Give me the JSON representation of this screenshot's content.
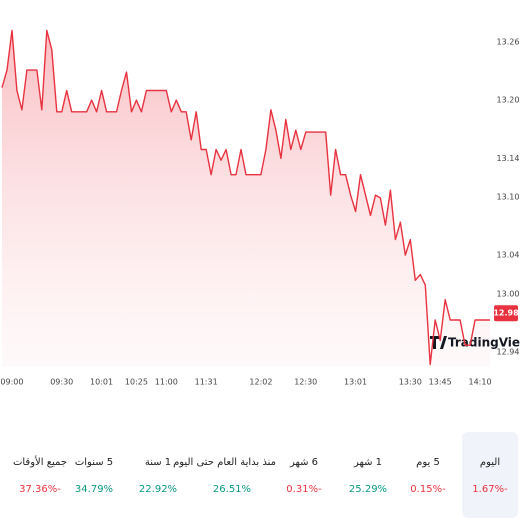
{
  "chart_data": {
    "type": "line",
    "color": "#e8323f",
    "grid": false,
    "values": [
      13.213,
      13.231,
      13.272,
      13.21,
      13.19,
      13.231,
      13.231,
      13.231,
      13.19,
      13.272,
      13.252,
      13.188,
      13.188,
      13.21,
      13.188,
      13.188,
      13.188,
      13.188,
      13.2,
      13.188,
      13.21,
      13.188,
      13.188,
      13.188,
      13.21,
      13.229,
      13.188,
      13.2,
      13.188,
      13.21,
      13.21,
      13.21,
      13.21,
      13.21,
      13.188,
      13.2,
      13.188,
      13.188,
      13.159,
      13.188,
      13.149,
      13.149,
      13.123,
      13.149,
      13.138,
      13.149,
      13.123,
      13.123,
      13.149,
      13.123,
      13.123,
      13.123,
      13.123,
      13.149,
      13.19,
      13.169,
      13.14,
      13.18,
      13.149,
      13.169,
      13.149,
      13.167,
      13.167,
      13.167,
      13.167,
      13.167,
      13.102,
      13.149,
      13.123,
      13.123,
      13.102,
      13.085,
      13.123,
      13.102,
      13.081,
      13.102,
      13.099,
      13.071,
      13.107,
      13.056,
      13.074,
      13.04,
      13.056,
      13.014,
      13.02,
      13.009,
      12.927,
      12.973,
      12.952,
      12.994,
      12.973,
      12.973,
      12.973,
      12.947,
      12.947,
      12.973,
      12.973,
      12.973,
      12.973
    ],
    "xlim": [
      0,
      98
    ],
    "xticks": [
      {
        "value": 2,
        "label": "09:00"
      },
      {
        "value": 12,
        "label": "09:30"
      },
      {
        "value": 20,
        "label": "10:01"
      },
      {
        "value": 27,
        "label": "10:25"
      },
      {
        "value": 33,
        "label": "11:00"
      },
      {
        "value": 41,
        "label": "11:31"
      },
      {
        "value": 52,
        "label": "12:02"
      },
      {
        "value": 61,
        "label": "12:30"
      },
      {
        "value": 71,
        "label": "13:01"
      },
      {
        "value": 82,
        "label": "13:30"
      },
      {
        "value": 88,
        "label": "13:45"
      },
      {
        "value": 96,
        "label": "14:10"
      }
    ],
    "ylim": [
      12.925,
      13.275
    ],
    "yticks": [
      13.26,
      {
        "value": 13.2,
        "label": "13.20"
      },
      13.14,
      {
        "value": 13.1,
        "label": "13.10"
      },
      13.04,
      {
        "value": 13.0,
        "label": "13.00"
      },
      12.94
    ],
    "last_price": 12.98,
    "watermark": "TradingView"
  },
  "periods": [
    {
      "label": "اليوم",
      "change": "1.67%-",
      "color": "#e8323f",
      "selected": true
    },
    {
      "label": "5 يوم",
      "change": "0.15%-",
      "color": "#e8323f",
      "selected": false
    },
    {
      "label": "1 شهر",
      "change": "25.29%",
      "color": "#089981",
      "selected": false
    },
    {
      "label": "6 شهر",
      "change": "0.31%-",
      "color": "#e8323f",
      "selected": false
    },
    {
      "label": "منذ بداية العام حتى اليوم",
      "change": "26.51%",
      "color": "#089981",
      "selected": false
    },
    {
      "label": "1 سنة",
      "change": "22.92%",
      "color": "#089981",
      "selected": false
    },
    {
      "label": "5 سنوات",
      "change": "34.79%",
      "color": "#089981",
      "selected": false
    },
    {
      "label": "جميع الأوقات",
      "change": "37.36%-",
      "color": "#e8323f",
      "selected": false
    }
  ]
}
